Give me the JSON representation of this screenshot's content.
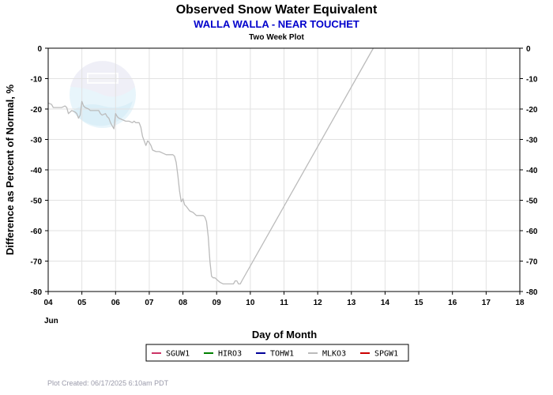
{
  "chart_data": {
    "type": "line",
    "title": "Observed Snow Water Equivalent",
    "subtitle": "WALLA WALLA - NEAR TOUCHET",
    "subsubtitle": "Two Week Plot",
    "xlabel": "Day of Month",
    "ylabel": "Difference as Percent of Normal, %",
    "month_label": "Jun",
    "footer": "Plot Created: 06/17/2025 6:10am PDT",
    "xlim": [
      4,
      18
    ],
    "ylim": [
      -80,
      0
    ],
    "x_ticks": [
      "04",
      "05",
      "06",
      "07",
      "08",
      "09",
      "10",
      "11",
      "12",
      "13",
      "14",
      "15",
      "16",
      "17",
      "18"
    ],
    "y_ticks": [
      "0",
      "-10",
      "-20",
      "-30",
      "-40",
      "-50",
      "-60",
      "-70",
      "-80"
    ],
    "grid": true,
    "legend_position": "bottom",
    "legend": [
      {
        "name": "SGUW1",
        "color": "#cc3366"
      },
      {
        "name": "HIRO3",
        "color": "#008000"
      },
      {
        "name": "TOHW1",
        "color": "#000099"
      },
      {
        "name": "MLKO3",
        "color": "#bbbbbb"
      },
      {
        "name": "SPGW1",
        "color": "#cc0000"
      }
    ],
    "series": [
      {
        "name": "MLKO3",
        "color": "#bbbbbb",
        "x": [
          4.0,
          4.1,
          4.15,
          4.4,
          4.5,
          4.55,
          4.6,
          4.65,
          4.7,
          4.8,
          4.85,
          4.9,
          4.95,
          5.0,
          5.05,
          5.1,
          5.2,
          5.25,
          5.3,
          5.5,
          5.55,
          5.6,
          5.7,
          5.75,
          5.8,
          5.85,
          5.9,
          5.95,
          6.0,
          6.05,
          6.1,
          6.2,
          6.3,
          6.4,
          6.5,
          6.55,
          6.6,
          6.65,
          6.7,
          6.75,
          6.8,
          6.9,
          6.95,
          7.0,
          7.05,
          7.1,
          7.2,
          7.3,
          7.4,
          7.5,
          7.6,
          7.7,
          7.75,
          7.8,
          7.85,
          7.9,
          7.95,
          8.0,
          8.05,
          8.1,
          8.2,
          8.3,
          8.4,
          8.5,
          8.6,
          8.65,
          8.7,
          8.75,
          8.8,
          8.85,
          8.9,
          8.95,
          9.0,
          9.05,
          9.1,
          9.2,
          9.3,
          9.4,
          9.5,
          9.55,
          9.6,
          9.65,
          9.7,
          9.75,
          13.65
        ],
        "y": [
          -18,
          -18.5,
          -19.5,
          -19.5,
          -19,
          -19.5,
          -21.5,
          -21,
          -20.5,
          -21,
          -21.5,
          -23,
          -22,
          -17.5,
          -19,
          -19.5,
          -20,
          -20.5,
          -20.5,
          -20.5,
          -21.5,
          -22,
          -21.5,
          -22.5,
          -23,
          -24.5,
          -25.5,
          -26.5,
          -21.5,
          -22.5,
          -23,
          -23.5,
          -24,
          -24,
          -24.5,
          -24,
          -24.5,
          -24.5,
          -24.5,
          -26,
          -29,
          -32,
          -30.5,
          -31,
          -32,
          -33.5,
          -34,
          -34,
          -34.5,
          -35,
          -35,
          -35,
          -35.5,
          -37.5,
          -42,
          -47,
          -50.5,
          -49.5,
          -51.5,
          -52,
          -53.5,
          -54,
          -55,
          -55,
          -55,
          -55.5,
          -57,
          -62,
          -70,
          -75,
          -75.5,
          -75.5,
          -76,
          -76.5,
          -77,
          -77.5,
          -77.5,
          -77.5,
          -77.5,
          -76.5,
          -76.5,
          -77.5,
          -77.5,
          -76.5,
          0
        ]
      }
    ]
  }
}
